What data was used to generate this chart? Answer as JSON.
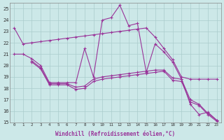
{
  "xlabel": "Windchill (Refroidissement éolien,°C)",
  "bg_color": "#cce8e8",
  "line_color": "#993399",
  "grid_color": "#aacccc",
  "xlim": [
    -0.5,
    23.5
  ],
  "ylim": [
    15,
    25.5
  ],
  "xticks": [
    0,
    1,
    2,
    3,
    4,
    5,
    6,
    7,
    8,
    9,
    10,
    11,
    12,
    13,
    14,
    15,
    16,
    17,
    18,
    19,
    20,
    21,
    22,
    23
  ],
  "yticks": [
    15,
    16,
    17,
    18,
    19,
    20,
    21,
    22,
    23,
    24,
    25
  ],
  "line1_x": [
    0,
    1,
    2,
    3,
    4,
    5,
    6,
    7,
    8,
    9,
    10,
    11,
    12,
    13,
    14,
    15,
    16,
    17,
    18,
    19,
    20,
    21,
    22,
    23
  ],
  "line1_y": [
    23.3,
    21.9,
    22.0,
    22.1,
    22.2,
    22.3,
    22.4,
    22.5,
    22.6,
    22.7,
    22.8,
    22.9,
    23.0,
    23.1,
    23.2,
    23.3,
    22.5,
    21.5,
    20.5,
    19.0,
    18.8,
    18.8,
    18.8,
    18.8
  ],
  "line2_x": [
    0,
    1,
    2,
    3,
    4,
    5,
    6,
    7,
    8,
    9,
    10,
    11,
    12,
    13,
    14,
    15,
    16,
    17,
    18,
    19,
    20,
    21,
    22,
    23
  ],
  "line2_y": [
    21.0,
    21.0,
    20.6,
    20.0,
    18.5,
    18.5,
    18.5,
    18.5,
    21.5,
    19.0,
    24.0,
    24.2,
    25.3,
    23.5,
    23.7,
    19.4,
    21.9,
    21.2,
    20.3,
    18.8,
    16.6,
    15.7,
    15.9,
    15.2
  ],
  "line3_x": [
    2,
    3,
    4,
    5,
    6,
    7,
    8,
    9,
    10,
    11,
    12,
    13,
    14,
    15,
    16,
    17,
    18,
    19,
    20,
    21,
    22,
    23
  ],
  "line3_y": [
    20.4,
    19.8,
    18.4,
    18.4,
    18.4,
    18.1,
    18.2,
    18.8,
    19.0,
    19.1,
    19.2,
    19.3,
    19.4,
    19.5,
    19.6,
    19.6,
    18.9,
    18.8,
    17.0,
    16.6,
    15.8,
    15.2
  ],
  "line4_x": [
    2,
    3,
    4,
    5,
    6,
    7,
    8,
    9,
    10,
    11,
    12,
    13,
    14,
    15,
    16,
    17,
    18,
    19,
    20,
    21,
    22,
    23
  ],
  "line4_y": [
    20.3,
    19.7,
    18.3,
    18.3,
    18.3,
    17.9,
    18.0,
    18.6,
    18.8,
    18.9,
    19.0,
    19.1,
    19.2,
    19.3,
    19.4,
    19.5,
    18.7,
    18.6,
    16.8,
    16.5,
    15.7,
    15.1
  ],
  "marker": "+"
}
